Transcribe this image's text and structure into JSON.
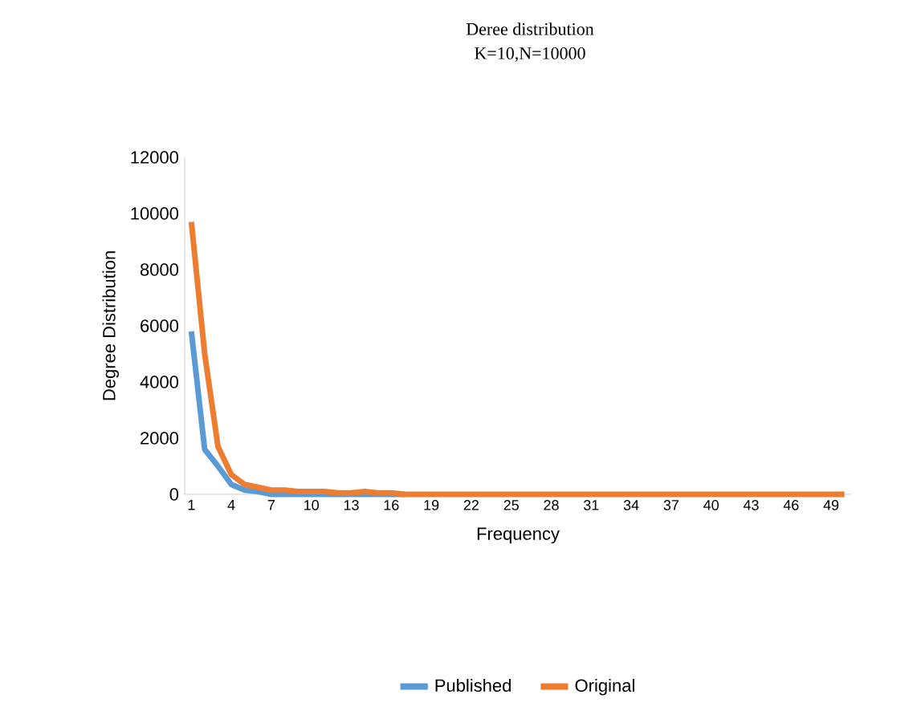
{
  "chart_data": {
    "type": "line",
    "title": "Deree distribution",
    "subtitle": "K=10,N=10000",
    "xlabel": "Frequency",
    "ylabel": "Degree Distribution",
    "categories": [
      "1",
      null,
      null,
      "4",
      null,
      null,
      "7",
      null,
      null,
      "10",
      null,
      null,
      "13",
      null,
      null,
      "16",
      null,
      null,
      "19",
      null,
      null,
      "22",
      null,
      null,
      "25",
      null,
      null,
      "28",
      null,
      null,
      "31",
      null,
      null,
      "34",
      null,
      null,
      "37",
      null,
      null,
      "40",
      null,
      null,
      "43",
      null,
      null,
      "46",
      null,
      null,
      "49",
      null
    ],
    "series": [
      {
        "name": "Published",
        "color": "#5b9bd5",
        "values": [
          5800,
          1600,
          1000,
          350,
          150,
          100,
          0,
          0,
          0,
          0,
          0,
          0,
          0,
          0,
          0,
          0,
          0,
          null,
          null,
          null,
          null,
          null,
          null,
          null,
          null,
          null,
          null,
          null,
          null,
          null,
          null,
          null,
          null,
          null,
          null,
          null,
          null,
          null,
          null,
          null,
          null,
          null,
          null,
          null,
          null,
          null,
          null,
          null,
          null,
          null
        ]
      },
      {
        "name": "Original",
        "color": "#ed7d31",
        "values": [
          9700,
          5000,
          1700,
          700,
          350,
          250,
          150,
          150,
          100,
          100,
          100,
          50,
          50,
          100,
          50,
          50,
          0,
          0,
          0,
          0,
          0,
          0,
          0,
          0,
          0,
          0,
          0,
          0,
          0,
          0,
          0,
          0,
          0,
          0,
          0,
          0,
          0,
          0,
          0,
          0,
          0,
          0,
          0,
          0,
          0,
          0,
          0,
          0,
          0,
          0
        ]
      }
    ],
    "ylim": [
      0,
      12000
    ],
    "yticks": [
      0,
      2000,
      4000,
      6000,
      8000,
      10000,
      12000
    ],
    "grid": false,
    "legend": "bottom",
    "marker": "none",
    "line_style": "solid"
  }
}
